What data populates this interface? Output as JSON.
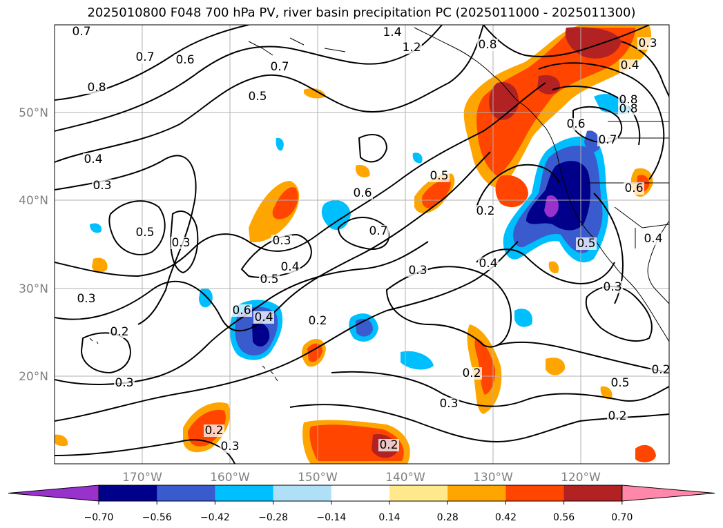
{
  "title": "2025010800 F048 700 hPa PV, river basin precipitation PC (2025011000 - 2025011300)",
  "map": {
    "lon_labels": [
      "170°W",
      "160°W",
      "150°W",
      "140°W",
      "130°W",
      "120°W"
    ],
    "lat_labels": [
      "50°N",
      "40°N",
      "30°N",
      "20°N"
    ],
    "grid": true,
    "contour_labels": [
      {
        "text": "0.7"
      },
      {
        "text": "0.7"
      },
      {
        "text": "0.6"
      },
      {
        "text": "0.8"
      },
      {
        "text": "0.4"
      },
      {
        "text": "0.3"
      },
      {
        "text": "0.5"
      },
      {
        "text": "0.3"
      },
      {
        "text": "0.3"
      },
      {
        "text": "0.2"
      },
      {
        "text": "0.3"
      },
      {
        "text": "0.2"
      },
      {
        "text": "0.3"
      },
      {
        "text": "0.6"
      },
      {
        "text": "0.4"
      },
      {
        "text": "0.5"
      },
      {
        "text": "0.4"
      },
      {
        "text": "0.3"
      },
      {
        "text": "0.6"
      },
      {
        "text": "0.7"
      },
      {
        "text": "0.5"
      },
      {
        "text": "0.3"
      },
      {
        "text": "0.2"
      },
      {
        "text": "1.4"
      },
      {
        "text": "1.2"
      },
      {
        "text": "0.7"
      },
      {
        "text": "0.5"
      },
      {
        "text": "0.8"
      },
      {
        "text": "0.8"
      },
      {
        "text": "0.2"
      },
      {
        "text": "0.4"
      },
      {
        "text": "0.2"
      },
      {
        "text": "0.3"
      },
      {
        "text": "0.2"
      },
      {
        "text": "0.6"
      },
      {
        "text": "0.7"
      },
      {
        "text": "0.5"
      },
      {
        "text": "0.4"
      },
      {
        "text": "0.8"
      },
      {
        "text": "0.3"
      },
      {
        "text": "0.6"
      },
      {
        "text": "0.4"
      },
      {
        "text": "0.3"
      },
      {
        "text": "0.5"
      },
      {
        "text": "0.2"
      },
      {
        "text": "0.2"
      }
    ]
  },
  "colorbar": {
    "ticks": [
      "−0.70",
      "−0.56",
      "−0.42",
      "−0.28",
      "−0.14",
      "0.14",
      "0.28",
      "0.42",
      "0.56",
      "0.70"
    ],
    "colors": [
      "#9932CC",
      "#00008B",
      "#3A5BCD",
      "#00BFFF",
      "#B0E0F8",
      "#FFFFFF",
      "#FFE98A",
      "#FFA500",
      "#FF4500",
      "#B22222",
      "#FF88AA"
    ]
  }
}
